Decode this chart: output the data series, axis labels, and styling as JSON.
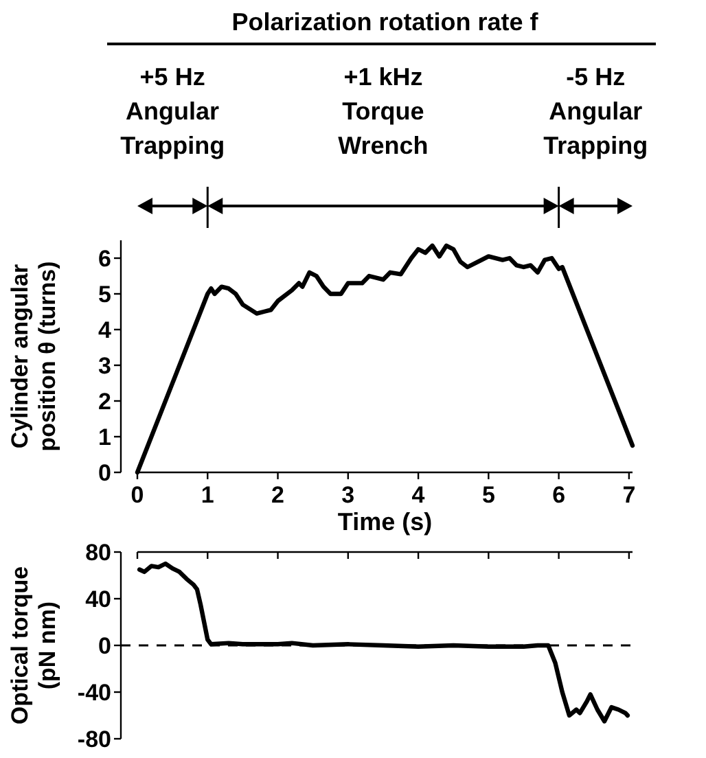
{
  "chart_data": [
    {
      "type": "line",
      "title": "Polarization rotation rate f",
      "xlabel": "Time (s)",
      "ylabel": "Cylinder angular\nposition θ (turns)",
      "xlim": [
        0,
        7.05
      ],
      "ylim": [
        0,
        6.5
      ],
      "xticks": [
        0,
        1,
        2,
        3,
        4,
        5,
        6,
        7
      ],
      "yticks": [
        0,
        1,
        2,
        3,
        4,
        5,
        6
      ],
      "line_style": "solid",
      "marker": "none",
      "grid": false,
      "annotations": [
        "+5 Hz\nAngular\nTrapping",
        "+1 kHz\nTorque\nWrench",
        "-5 Hz\nAngular\nTrapping"
      ],
      "series": [
        {
          "color": "#000000",
          "x": [
            0,
            1,
            1.05,
            1.1,
            1.2,
            1.3,
            1.4,
            1.5,
            1.7,
            1.8,
            1.9,
            2.0,
            2.2,
            2.3,
            2.35,
            2.45,
            2.55,
            2.65,
            2.75,
            2.9,
            3.0,
            3.2,
            3.3,
            3.5,
            3.6,
            3.75,
            3.9,
            4.0,
            4.1,
            4.2,
            4.3,
            4.4,
            4.5,
            4.6,
            4.7,
            4.9,
            5.0,
            5.2,
            5.3,
            5.4,
            5.5,
            5.6,
            5.7,
            5.8,
            5.9,
            6.0,
            6.05,
            7.05
          ],
          "values": [
            0,
            5.0,
            5.15,
            5.0,
            5.2,
            5.15,
            5.0,
            4.7,
            4.45,
            4.5,
            4.55,
            4.8,
            5.1,
            5.3,
            5.2,
            5.6,
            5.5,
            5.2,
            5.0,
            5.0,
            5.3,
            5.3,
            5.5,
            5.4,
            5.6,
            5.55,
            6.0,
            6.25,
            6.15,
            6.35,
            6.05,
            6.35,
            6.25,
            5.9,
            5.75,
            5.95,
            6.05,
            5.95,
            6.0,
            5.8,
            5.75,
            5.8,
            5.6,
            5.95,
            6.0,
            5.7,
            5.75,
            0.75
          ]
        }
      ]
    },
    {
      "type": "line",
      "ylabel": "Optical torque\n(pN nm)",
      "xlim": [
        0,
        7.05
      ],
      "ylim": [
        -80,
        80
      ],
      "xticks": [
        {
          "value": 0,
          "label": null
        },
        {
          "value": 1,
          "label": null
        },
        {
          "value": 2,
          "label": null
        },
        {
          "value": 3,
          "label": null
        },
        {
          "value": 4,
          "label": null
        },
        {
          "value": 5,
          "label": null
        },
        {
          "value": 6,
          "label": null
        },
        {
          "value": 7,
          "label": null
        }
      ],
      "yticks": [
        80,
        40,
        0,
        -40,
        -80
      ],
      "tick_labels": "y",
      "line_style": "solid",
      "marker": "none",
      "ref_lines": [
        {
          "axis": "y",
          "value": 0,
          "line_style": "dashed",
          "color": "#000000"
        }
      ],
      "series": [
        {
          "color": "#000000",
          "x": [
            0.03,
            0.1,
            0.2,
            0.3,
            0.4,
            0.5,
            0.6,
            0.7,
            0.8,
            0.85,
            0.9,
            0.95,
            1.0,
            1.05,
            1.3,
            1.5,
            2,
            2.2,
            2.5,
            3,
            3.5,
            4,
            4.5,
            5,
            5.5,
            5.7,
            5.85,
            5.95,
            6.05,
            6.15,
            6.25,
            6.3,
            6.4,
            6.45,
            6.55,
            6.65,
            6.75,
            6.85,
            6.95,
            6.98
          ],
          "values": [
            65,
            63,
            68,
            67,
            70,
            66,
            63,
            57,
            52,
            48,
            35,
            20,
            5,
            1,
            2,
            1,
            1,
            2,
            0,
            1,
            0,
            -1,
            0,
            -1,
            -1,
            0,
            0,
            -15,
            -40,
            -60,
            -55,
            -58,
            -48,
            -42,
            -55,
            -65,
            -53,
            -55,
            -58,
            -60
          ]
        }
      ]
    }
  ]
}
